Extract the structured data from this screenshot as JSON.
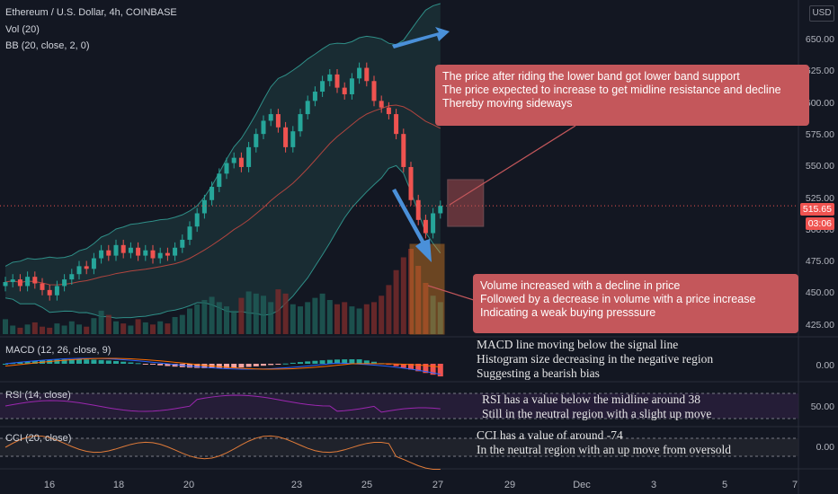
{
  "header": {
    "title": "Ethereum / U.S. Dollar, 4h, COINBASE",
    "vol": "Vol (20)",
    "bb": "BB (20, close, 2, 0)"
  },
  "currency": "USD",
  "colors": {
    "background": "#131722",
    "up": "#26a69a",
    "down": "#ef5350",
    "note_bg": "#c4575b",
    "arrow": "#4a90d9",
    "macd": "#2962ff",
    "signal": "#ff6d00"
  },
  "price_axis": [
    "650.00",
    "625.00",
    "600.00",
    "575.00",
    "550.00",
    "525.00",
    "500.00",
    "475.00",
    "450.00",
    "425.00"
  ],
  "current_price": "515.65",
  "countdown": "03:06",
  "date_axis": [
    "16",
    "18",
    "20",
    "23",
    "25",
    "27",
    "29",
    "Dec",
    "3",
    "5",
    "7"
  ],
  "macd_panel": {
    "label": "MACD (12, 26, close, 9)",
    "axis": "0.00"
  },
  "rsi_panel": {
    "label": "RSI (14, close)",
    "axis": "50.00"
  },
  "cci_panel": {
    "label": "CCI (20, close)",
    "axis": "0.00"
  },
  "notes": {
    "bb_note": [
      "The price after riding the lower band got lower band support",
      "The price expected to increase to get midline resistance and decline",
      "Thereby moving sideways"
    ],
    "vol_note": [
      "Volume increased with a decline in price",
      "Followed by a decrease in volume with a price increase",
      "Indicating a weak buying presssure"
    ],
    "macd_note": [
      "MACD line moving below the signal line",
      "Histogram size decreasing in the negative region",
      "Suggesting a bearish bias"
    ],
    "rsi_note": [
      "RSI has a value below the midline around 38",
      "Still in the neutral region with a slight up move"
    ],
    "cci_note": [
      "CCI has a value of around -74",
      "In the neutral region with an up move from oversold"
    ]
  },
  "chart_data": {
    "type": "candlestick",
    "close": [
      458,
      460,
      455,
      462,
      457,
      452,
      448,
      455,
      460,
      464,
      470,
      468,
      476,
      482,
      478,
      486,
      480,
      484,
      478,
      482,
      476,
      480,
      478,
      484,
      490,
      500,
      510,
      520,
      530,
      540,
      548,
      552,
      545,
      560,
      570,
      580,
      585,
      575,
      560,
      572,
      585,
      595,
      602,
      610,
      615,
      605,
      600,
      612,
      620,
      610,
      595,
      590,
      585,
      570,
      545,
      520,
      505,
      495,
      510,
      515.65
    ],
    "open": [
      455,
      458,
      460,
      455,
      462,
      457,
      452,
      448,
      455,
      460,
      464,
      470,
      468,
      476,
      482,
      478,
      486,
      480,
      484,
      478,
      482,
      476,
      480,
      478,
      484,
      490,
      500,
      510,
      520,
      530,
      540,
      548,
      552,
      545,
      560,
      570,
      580,
      585,
      575,
      560,
      572,
      585,
      595,
      602,
      610,
      615,
      605,
      600,
      612,
      620,
      610,
      595,
      590,
      585,
      570,
      545,
      520,
      505,
      495,
      510
    ],
    "volume": [
      14,
      8,
      6,
      9,
      11,
      7,
      6,
      10,
      8,
      12,
      9,
      7,
      15,
      22,
      18,
      12,
      10,
      8,
      14,
      11,
      9,
      12,
      10,
      16,
      18,
      24,
      28,
      32,
      35,
      30,
      26,
      22,
      34,
      40,
      38,
      36,
      30,
      42,
      38,
      28,
      26,
      30,
      34,
      38,
      32,
      28,
      30,
      26,
      24,
      28,
      30,
      36,
      46,
      60,
      72,
      80,
      64,
      48,
      36,
      30
    ]
  }
}
